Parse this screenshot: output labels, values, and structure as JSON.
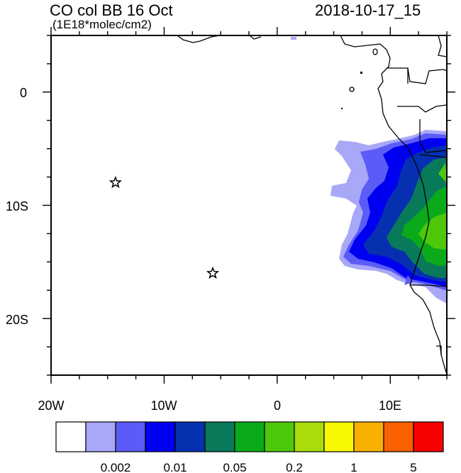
{
  "title": {
    "left": "CO col BB 16 Oct",
    "units": "(1E18*molec/cm2)",
    "right": "2018-10-17_15"
  },
  "axes": {
    "x_ticks": [
      "20W",
      "10W",
      "0",
      "10E"
    ],
    "y_ticks": [
      "0",
      "10S",
      "20S"
    ],
    "lon_range": [
      -20,
      15
    ],
    "lat_range": [
      -25,
      5
    ]
  },
  "markers": [
    {
      "name": "star",
      "lon": -14.3,
      "lat": -8.0
    },
    {
      "name": "star",
      "lon": -5.7,
      "lat": -16.0
    }
  ],
  "colorbar": {
    "colors": [
      "#ffffff",
      "#a8a8f8",
      "#5b5bf8",
      "#0000f0",
      "#0630b0",
      "#087a5a",
      "#0aaa1a",
      "#4ec80a",
      "#a8dc0a",
      "#f8f800",
      "#f8b000",
      "#f86000",
      "#f80000"
    ],
    "labels": [
      {
        "text": "0.002",
        "after_box": 2
      },
      {
        "text": "0.01",
        "after_box": 4
      },
      {
        "text": "0.05",
        "after_box": 6
      },
      {
        "text": "0.2",
        "after_box": 8
      },
      {
        "text": "1",
        "after_box": 10
      },
      {
        "text": "5",
        "after_box": 12
      }
    ]
  }
}
